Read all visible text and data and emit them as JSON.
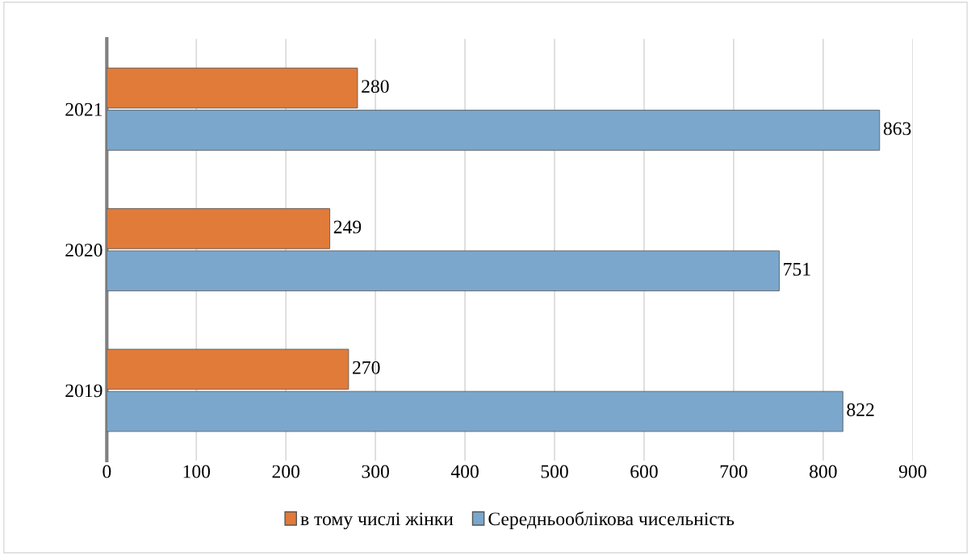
{
  "chart_data": {
    "type": "bar",
    "orientation": "horizontal",
    "categories": [
      "2021",
      "2020",
      "2019"
    ],
    "series": [
      {
        "name": "в тому числі жінки",
        "color": "#e07b39",
        "values": [
          280,
          249,
          270
        ]
      },
      {
        "name": "Середньооблікова чисельність",
        "color": "#7ba7cc",
        "values": [
          863,
          751,
          822
        ]
      }
    ],
    "xlim": [
      0,
      900
    ],
    "xticks": [
      0,
      100,
      200,
      300,
      400,
      500,
      600,
      700,
      800,
      900
    ],
    "grid": "x",
    "legend": "bottom",
    "data_labels": true
  }
}
